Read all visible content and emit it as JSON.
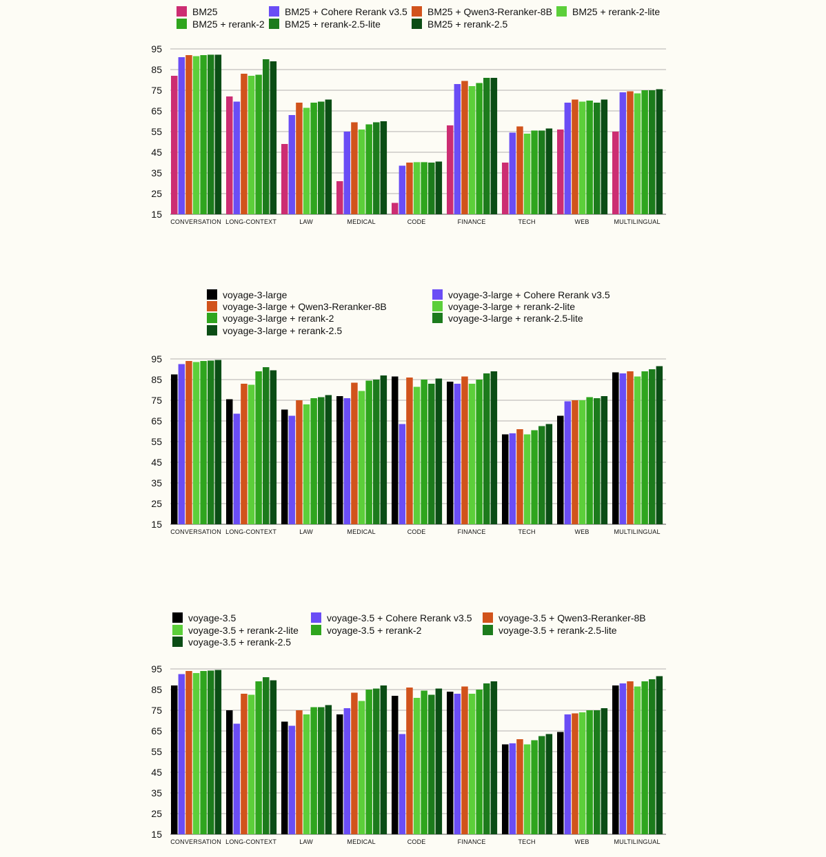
{
  "colors": {
    "pink": "#cc2d72",
    "purple": "#6a4df5",
    "orange": "#d1531c",
    "light_green": "#5ccf3a",
    "mid_green": "#2fa51e",
    "green": "#1c7b1c",
    "dark_green": "#0b4d15",
    "black": "#000000",
    "grid": "#999999",
    "background": "#fdfcf5"
  },
  "chart_data": [
    {
      "type": "bar",
      "title": "",
      "xlabel": "",
      "ylabel": "",
      "ylim": [
        15,
        95
      ],
      "yticks": [
        15,
        25,
        35,
        45,
        55,
        65,
        75,
        85,
        95
      ],
      "grid": true,
      "legend_position": "top",
      "categories": [
        "CONVERSATION",
        "LONG-CONTEXT",
        "LAW",
        "MEDICAL",
        "CODE",
        "FINANCE",
        "TECH",
        "WEB",
        "MULTILINGUAL"
      ],
      "series": [
        {
          "name": "BM25",
          "color": "#cc2d72",
          "values": [
            82.0,
            72.0,
            49.0,
            31.0,
            20.5,
            58.0,
            40.0,
            56.0,
            55.0
          ]
        },
        {
          "name": "BM25 + Cohere Rerank v3.5",
          "color": "#6a4df5",
          "values": [
            91.0,
            69.5,
            63.0,
            55.0,
            38.5,
            78.0,
            54.5,
            69.0,
            74.0
          ]
        },
        {
          "name": "BM25 + Qwen3-Reranker-8B",
          "color": "#d1531c",
          "values": [
            92.0,
            83.0,
            69.0,
            59.5,
            40.0,
            79.5,
            57.5,
            70.5,
            74.5
          ]
        },
        {
          "name": "BM25 + rerank-2-lite",
          "color": "#5ccf3a",
          "values": [
            91.5,
            82.0,
            66.5,
            56.0,
            40.2,
            77.0,
            54.0,
            69.5,
            73.5
          ]
        },
        {
          "name": "BM25 + rerank-2",
          "color": "#2fa51e",
          "values": [
            92.0,
            82.5,
            69.0,
            58.5,
            40.2,
            78.5,
            55.5,
            70.0,
            75.0
          ]
        },
        {
          "name": "BM25 + rerank-2.5-lite",
          "color": "#1c7b1c",
          "values": [
            92.2,
            90.0,
            69.5,
            59.5,
            40.0,
            81.0,
            55.5,
            69.0,
            75.0
          ]
        },
        {
          "name": "BM25 + rerank-2.5",
          "color": "#0b4d15",
          "values": [
            92.2,
            89.0,
            70.5,
            60.0,
            40.5,
            81.0,
            56.5,
            70.5,
            75.5
          ]
        }
      ],
      "legend_order": [
        0,
        1,
        2,
        3,
        4,
        5,
        6
      ]
    },
    {
      "type": "bar",
      "title": "",
      "xlabel": "",
      "ylabel": "",
      "ylim": [
        15,
        95
      ],
      "yticks": [
        15,
        25,
        35,
        45,
        55,
        65,
        75,
        85,
        95
      ],
      "grid": true,
      "legend_position": "top",
      "categories": [
        "CONVERSATION",
        "LONG-CONTEXT",
        "LAW",
        "MEDICAL",
        "CODE",
        "FINANCE",
        "TECH",
        "WEB",
        "MULTILINGUAL"
      ],
      "series": [
        {
          "name": "voyage-3-large",
          "color": "#000000",
          "values": [
            87.5,
            75.5,
            70.5,
            77.0,
            86.5,
            84.0,
            58.5,
            67.5,
            88.5
          ]
        },
        {
          "name": "voyage-3-large + Cohere Rerank v3.5",
          "color": "#6a4df5",
          "values": [
            92.5,
            68.5,
            67.5,
            76.0,
            63.5,
            83.0,
            59.0,
            74.5,
            88.0
          ]
        },
        {
          "name": "voyage-3-large + Qwen3-Reranker-8B",
          "color": "#d1531c",
          "values": [
            94.0,
            83.0,
            75.0,
            83.5,
            86.0,
            86.5,
            61.0,
            75.0,
            89.0
          ]
        },
        {
          "name": "voyage-3-large + rerank-2-lite",
          "color": "#5ccf3a",
          "values": [
            93.5,
            82.5,
            73.0,
            79.5,
            81.5,
            83.0,
            58.5,
            75.0,
            86.5
          ]
        },
        {
          "name": "voyage-3-large + rerank-2",
          "color": "#2fa51e",
          "values": [
            94.0,
            89.0,
            76.0,
            84.5,
            85.0,
            85.0,
            60.5,
            76.5,
            89.0
          ]
        },
        {
          "name": "voyage-3-large + rerank-2.5-lite",
          "color": "#1c7b1c",
          "values": [
            94.2,
            91.0,
            76.5,
            85.0,
            83.0,
            88.0,
            62.5,
            76.0,
            90.0
          ]
        },
        {
          "name": "voyage-3-large + rerank-2.5",
          "color": "#0b4d15",
          "values": [
            94.5,
            89.5,
            77.5,
            87.0,
            85.5,
            89.0,
            63.5,
            77.0,
            91.5
          ]
        }
      ],
      "legend_order": [
        0,
        2,
        4,
        6,
        1,
        3,
        5
      ]
    },
    {
      "type": "bar",
      "title": "",
      "xlabel": "",
      "ylabel": "",
      "ylim": [
        15,
        95
      ],
      "yticks": [
        15,
        25,
        35,
        45,
        55,
        65,
        75,
        85,
        95
      ],
      "grid": true,
      "legend_position": "top",
      "categories": [
        "CONVERSATION",
        "LONG-CONTEXT",
        "LAW",
        "MEDICAL",
        "CODE",
        "FINANCE",
        "TECH",
        "WEB",
        "MULTILINGUAL"
      ],
      "series": [
        {
          "name": "voyage-3.5",
          "color": "#000000",
          "values": [
            87.0,
            75.0,
            69.5,
            73.0,
            82.0,
            84.0,
            58.5,
            64.5,
            87.0
          ]
        },
        {
          "name": "voyage-3.5 + Cohere Rerank v3.5",
          "color": "#6a4df5",
          "values": [
            92.5,
            68.5,
            67.5,
            76.0,
            63.5,
            83.0,
            59.0,
            73.0,
            88.0
          ]
        },
        {
          "name": "voyage-3.5 + Qwen3-Reranker-8B",
          "color": "#d1531c",
          "values": [
            94.0,
            83.0,
            75.0,
            83.5,
            86.0,
            86.5,
            61.0,
            73.5,
            89.0
          ]
        },
        {
          "name": "voyage-3.5 + rerank-2-lite",
          "color": "#5ccf3a",
          "values": [
            93.0,
            82.5,
            73.0,
            79.5,
            81.0,
            83.0,
            58.5,
            74.0,
            86.5
          ]
        },
        {
          "name": "voyage-3.5 + rerank-2",
          "color": "#2fa51e",
          "values": [
            94.0,
            89.0,
            76.5,
            85.0,
            84.5,
            85.0,
            60.5,
            75.0,
            89.0
          ]
        },
        {
          "name": "voyage-3.5 + rerank-2.5-lite",
          "color": "#1c7b1c",
          "values": [
            94.2,
            91.0,
            76.5,
            85.5,
            82.5,
            88.0,
            62.5,
            75.0,
            90.0
          ]
        },
        {
          "name": "voyage-3.5 + rerank-2.5",
          "color": "#0b4d15",
          "values": [
            94.5,
            89.5,
            77.5,
            87.0,
            85.5,
            89.0,
            63.5,
            76.0,
            91.5
          ]
        }
      ],
      "legend_order": [
        0,
        3,
        6,
        1,
        4,
        2,
        5
      ]
    }
  ]
}
